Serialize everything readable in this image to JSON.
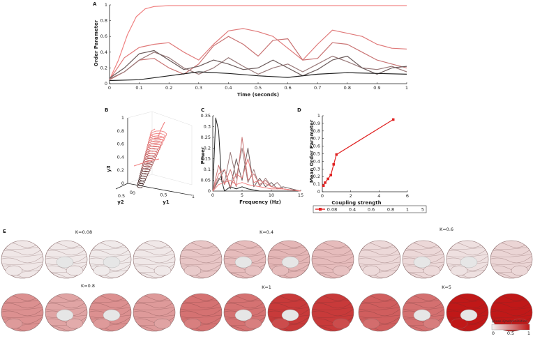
{
  "chart_data": [
    {
      "panel": "A",
      "type": "line",
      "xlabel": "Time (seconds)",
      "ylabel": "Order Parameter",
      "xlim": [
        0,
        1
      ],
      "ylim": [
        0,
        1
      ],
      "xticks": [
        "0",
        "0.1",
        "0.2",
        "0.3",
        "0.4",
        "0.5",
        "0.6",
        "0.7",
        "0.8",
        "0.9",
        "1"
      ],
      "yticks": [
        "0",
        "0.2",
        "0.4",
        "0.6",
        "0.8",
        "1"
      ],
      "series": [
        {
          "color": "#f08080",
          "x": [
            0,
            0.03,
            0.06,
            0.09,
            0.12,
            0.15,
            0.2,
            0.3,
            0.5,
            0.7,
            1.0
          ],
          "y": [
            0.05,
            0.3,
            0.62,
            0.85,
            0.95,
            0.98,
            0.99,
            0.99,
            0.99,
            0.99,
            0.99
          ]
        },
        {
          "color": "#e07a7a",
          "x": [
            0,
            0.05,
            0.1,
            0.15,
            0.2,
            0.25,
            0.3,
            0.35,
            0.4,
            0.45,
            0.5,
            0.55,
            0.6,
            0.65,
            0.7,
            0.75,
            0.8,
            0.85,
            0.9,
            0.95,
            1.0
          ],
          "y": [
            0.05,
            0.33,
            0.46,
            0.5,
            0.52,
            0.4,
            0.3,
            0.5,
            0.67,
            0.7,
            0.66,
            0.6,
            0.45,
            0.3,
            0.5,
            0.68,
            0.64,
            0.6,
            0.5,
            0.45,
            0.44
          ]
        },
        {
          "color": "#c97474",
          "x": [
            0,
            0.05,
            0.1,
            0.15,
            0.2,
            0.25,
            0.3,
            0.35,
            0.4,
            0.45,
            0.5,
            0.55,
            0.6,
            0.65,
            0.7,
            0.75,
            0.8,
            0.85,
            0.9,
            0.95,
            1.0
          ],
          "y": [
            0.05,
            0.15,
            0.3,
            0.32,
            0.2,
            0.12,
            0.25,
            0.48,
            0.6,
            0.5,
            0.35,
            0.55,
            0.57,
            0.3,
            0.32,
            0.52,
            0.5,
            0.4,
            0.3,
            0.25,
            0.2
          ]
        },
        {
          "color": "#9a7a7a",
          "x": [
            0,
            0.05,
            0.1,
            0.15,
            0.2,
            0.25,
            0.3,
            0.35,
            0.4,
            0.45,
            0.5,
            0.55,
            0.6,
            0.65,
            0.7,
            0.75,
            0.8,
            0.85,
            0.9,
            0.95,
            1.0
          ],
          "y": [
            0.06,
            0.15,
            0.3,
            0.4,
            0.33,
            0.2,
            0.12,
            0.2,
            0.33,
            0.22,
            0.12,
            0.2,
            0.25,
            0.15,
            0.25,
            0.35,
            0.28,
            0.2,
            0.18,
            0.22,
            0.15
          ]
        },
        {
          "color": "#6a5a5a",
          "x": [
            0,
            0.05,
            0.1,
            0.15,
            0.2,
            0.25,
            0.3,
            0.35,
            0.4,
            0.45,
            0.5,
            0.55,
            0.6,
            0.65,
            0.7,
            0.75,
            0.8,
            0.85,
            0.9,
            0.95,
            1.0
          ],
          "y": [
            0.07,
            0.2,
            0.38,
            0.42,
            0.3,
            0.18,
            0.22,
            0.3,
            0.25,
            0.18,
            0.2,
            0.3,
            0.2,
            0.1,
            0.18,
            0.3,
            0.35,
            0.2,
            0.12,
            0.2,
            0.22
          ]
        },
        {
          "color": "#222222",
          "x": [
            0,
            0.1,
            0.2,
            0.3,
            0.4,
            0.5,
            0.6,
            0.7,
            0.8,
            0.9,
            1.0
          ],
          "y": [
            0.04,
            0.05,
            0.1,
            0.15,
            0.13,
            0.1,
            0.08,
            0.12,
            0.14,
            0.13,
            0.12
          ]
        }
      ]
    },
    {
      "panel": "B",
      "type": "scatter",
      "xlabel": "y1",
      "ylabel": "y3",
      "zlabel": "y2",
      "zticks": [
        "0",
        "0.2",
        "0.4",
        "0.6",
        "0.8",
        "1"
      ],
      "x1ticks": [
        "0",
        "0.5",
        "1"
      ],
      "x2ticks": [
        "0",
        "0.5"
      ]
    },
    {
      "panel": "C",
      "type": "line",
      "xlabel": "Frequency (Hz)",
      "ylabel": "Power",
      "xlim": [
        0,
        15
      ],
      "ylim": [
        0,
        0.35
      ],
      "xticks": [
        "0",
        "5",
        "10",
        "15"
      ],
      "yticks": [
        "0",
        "0.05",
        "0.1",
        "0.15",
        "0.2",
        "0.25",
        "0.3",
        "0.35"
      ],
      "series": [
        {
          "color": "#222222",
          "x": [
            0,
            0.5,
            1,
            1.5,
            2,
            3,
            4,
            5,
            6,
            8,
            10,
            12,
            15
          ],
          "y": [
            0,
            0.34,
            0.28,
            0.05,
            0,
            0.02,
            0.01,
            0.02,
            0.01,
            0,
            0,
            0,
            0
          ]
        },
        {
          "color": "#6a5a5a",
          "x": [
            0,
            1,
            2,
            3,
            4,
            5,
            6,
            7,
            8,
            9,
            10,
            11,
            12,
            15
          ],
          "y": [
            0,
            0.05,
            0.1,
            0.01,
            0.15,
            0.05,
            0.2,
            0.02,
            0.06,
            0.02,
            0.04,
            0.01,
            0.02,
            0
          ]
        },
        {
          "color": "#9a7a7a",
          "x": [
            0,
            1,
            2,
            3,
            4,
            5,
            6,
            7,
            8,
            9,
            10,
            11,
            12,
            15
          ],
          "y": [
            0,
            0.06,
            0.04,
            0.18,
            0.06,
            0.2,
            0.04,
            0.1,
            0.02,
            0.06,
            0.02,
            0.04,
            0.01,
            0
          ]
        },
        {
          "color": "#c97474",
          "x": [
            0,
            1,
            2,
            3,
            4,
            5,
            6,
            7,
            8,
            9,
            10,
            12,
            15
          ],
          "y": [
            0,
            0.12,
            0.03,
            0.1,
            0.02,
            0.25,
            0.05,
            0.08,
            0.03,
            0.05,
            0.02,
            0.01,
            0
          ]
        },
        {
          "color": "#e07a7a",
          "x": [
            0,
            1,
            2,
            3,
            4,
            5,
            6,
            7,
            8,
            10,
            12,
            15
          ],
          "y": [
            0,
            0.08,
            0.1,
            0.02,
            0.08,
            0.06,
            0.15,
            0.04,
            0.05,
            0.02,
            0.01,
            0
          ]
        },
        {
          "color": "#f08080",
          "x": [
            0,
            1,
            2,
            3,
            4,
            5,
            6,
            8,
            10,
            12,
            15
          ],
          "y": [
            0,
            0.03,
            0.04,
            0.05,
            0.03,
            0.04,
            0.03,
            0.02,
            0.01,
            0.01,
            0
          ]
        }
      ]
    },
    {
      "panel": "D",
      "type": "line",
      "xlabel": "Coupling strength",
      "ylabel": "Mean Order Parameter",
      "xlim": [
        0,
        6
      ],
      "ylim": [
        0,
        1
      ],
      "xticks": [
        "0",
        "2",
        "4",
        "6"
      ],
      "yticks": [
        "0",
        "0.1",
        "0.2",
        "0.3",
        "0.4",
        "0.5",
        "0.6",
        "0.7",
        "0.8",
        "0.9",
        "1"
      ],
      "series": [
        {
          "color": "#e02020",
          "x": [
            0.08,
            0.2,
            0.4,
            0.6,
            0.8,
            1,
            5
          ],
          "y": [
            0.08,
            0.12,
            0.17,
            0.22,
            0.36,
            0.49,
            0.95
          ]
        }
      ],
      "legend_items": [
        "0.08",
        "0.4",
        "0.6",
        "0.8",
        "1",
        "5"
      ]
    }
  ],
  "panel_letters": {
    "a": "A",
    "b": "B",
    "c": "C",
    "d": "D",
    "e": "E"
  },
  "brains": {
    "k_labels": [
      "K=0.08",
      "K=0.4",
      "K=0.6",
      "K=0.8",
      "K=1",
      "K=5"
    ],
    "intensity": [
      0.05,
      0.25,
      0.12,
      0.45,
      0.65,
      0.85
    ],
    "colorbar_title": "phase synchronization",
    "colorbar_ticks": [
      "0",
      "0.5",
      "1"
    ],
    "colors": {
      "low": "#f2f2f2",
      "high": "#c01818"
    }
  }
}
